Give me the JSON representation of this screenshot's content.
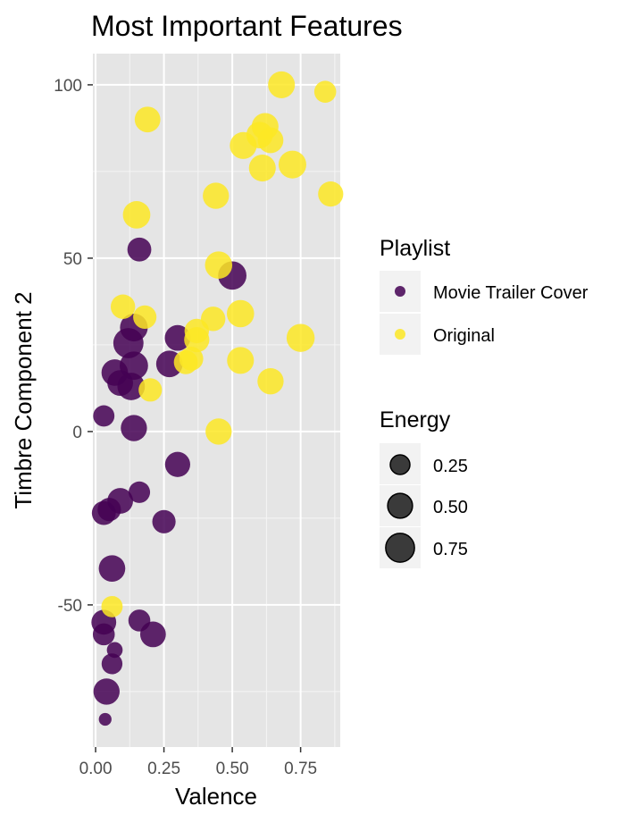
{
  "chart_data": {
    "type": "scatter",
    "title": "Most Important Features",
    "xlabel": "Valence",
    "ylabel": "Timbre Component 2",
    "xlim": [
      -0.01,
      0.895
    ],
    "ylim": [
      -91,
      109
    ],
    "xticks": [
      0,
      0.25,
      0.5,
      0.75
    ],
    "xtick_labels": [
      "0.00",
      "0.25",
      "0.50",
      "0.75"
    ],
    "yticks": [
      -50,
      0,
      50,
      100
    ],
    "ytick_labels": [
      "-50",
      "0",
      "50",
      "100"
    ],
    "grid": true,
    "panel_background": "#e5e5e5",
    "color_legend": {
      "title": "Playlist",
      "position": "right",
      "entries": [
        {
          "label": "Movie Trailer Cover",
          "color": "#440154"
        },
        {
          "label": "Original",
          "color": "#fde725"
        }
      ]
    },
    "size_legend": {
      "title": "Energy",
      "position": "right",
      "entries": [
        {
          "label": "0.25",
          "value": 0.25
        },
        {
          "label": "0.50",
          "value": 0.5
        },
        {
          "label": "0.75",
          "value": 0.75
        }
      ]
    },
    "series": [
      {
        "name": "Movie Trailer Cover",
        "color": "#440154",
        "points": [
          {
            "x": 0.16,
            "y": 52.5,
            "energy": 0.45
          },
          {
            "x": 0.5,
            "y": 45,
            "energy": 0.72
          },
          {
            "x": 0.14,
            "y": 30,
            "energy": 0.68
          },
          {
            "x": 0.12,
            "y": 25.5,
            "energy": 0.85
          },
          {
            "x": 0.3,
            "y": 27,
            "energy": 0.55
          },
          {
            "x": 0.07,
            "y": 17,
            "energy": 0.6
          },
          {
            "x": 0.14,
            "y": 19,
            "energy": 0.72
          },
          {
            "x": 0.27,
            "y": 19.5,
            "energy": 0.6
          },
          {
            "x": 0.09,
            "y": 14,
            "energy": 0.55
          },
          {
            "x": 0.13,
            "y": 13,
            "energy": 0.66
          },
          {
            "x": 0.03,
            "y": 4.5,
            "energy": 0.32
          },
          {
            "x": 0.14,
            "y": 1,
            "energy": 0.58
          },
          {
            "x": 0.3,
            "y": -9.5,
            "energy": 0.52
          },
          {
            "x": 0.16,
            "y": -17.5,
            "energy": 0.33
          },
          {
            "x": 0.09,
            "y": -20,
            "energy": 0.55
          },
          {
            "x": 0.05,
            "y": -22.5,
            "energy": 0.42
          },
          {
            "x": 0.03,
            "y": -23.5,
            "energy": 0.45
          },
          {
            "x": 0.25,
            "y": -26,
            "energy": 0.42
          },
          {
            "x": 0.06,
            "y": -39.5,
            "energy": 0.6
          },
          {
            "x": 0.03,
            "y": -55,
            "energy": 0.5
          },
          {
            "x": 0.16,
            "y": -54.5,
            "energy": 0.35
          },
          {
            "x": 0.03,
            "y": -58.5,
            "energy": 0.35
          },
          {
            "x": 0.21,
            "y": -58.5,
            "energy": 0.55
          },
          {
            "x": 0.07,
            "y": -63,
            "energy": 0.12
          },
          {
            "x": 0.06,
            "y": -67,
            "energy": 0.3
          },
          {
            "x": 0.04,
            "y": -75,
            "energy": 0.58
          },
          {
            "x": 0.035,
            "y": -83,
            "energy": 0.05
          }
        ]
      },
      {
        "name": "Original",
        "color": "#fde725",
        "points": [
          {
            "x": 0.68,
            "y": 100,
            "energy": 0.62
          },
          {
            "x": 0.84,
            "y": 98,
            "energy": 0.35
          },
          {
            "x": 0.19,
            "y": 90,
            "energy": 0.55
          },
          {
            "x": 0.62,
            "y": 88,
            "energy": 0.62
          },
          {
            "x": 0.6,
            "y": 85.5,
            "energy": 0.6
          },
          {
            "x": 0.64,
            "y": 84,
            "energy": 0.55
          },
          {
            "x": 0.54,
            "y": 82.5,
            "energy": 0.62
          },
          {
            "x": 0.72,
            "y": 77,
            "energy": 0.68
          },
          {
            "x": 0.61,
            "y": 76,
            "energy": 0.62
          },
          {
            "x": 0.44,
            "y": 68,
            "energy": 0.58
          },
          {
            "x": 0.86,
            "y": 68.5,
            "energy": 0.52
          },
          {
            "x": 0.15,
            "y": 62.5,
            "energy": 0.66
          },
          {
            "x": 0.45,
            "y": 48,
            "energy": 0.65
          },
          {
            "x": 0.1,
            "y": 36,
            "energy": 0.48
          },
          {
            "x": 0.18,
            "y": 33,
            "energy": 0.42
          },
          {
            "x": 0.43,
            "y": 32.5,
            "energy": 0.48
          },
          {
            "x": 0.53,
            "y": 34,
            "energy": 0.65
          },
          {
            "x": 0.37,
            "y": 29,
            "energy": 0.48
          },
          {
            "x": 0.37,
            "y": 26.5,
            "energy": 0.52
          },
          {
            "x": 0.75,
            "y": 27,
            "energy": 0.7
          },
          {
            "x": 0.35,
            "y": 21,
            "energy": 0.45
          },
          {
            "x": 0.33,
            "y": 20,
            "energy": 0.45
          },
          {
            "x": 0.53,
            "y": 20.5,
            "energy": 0.62
          },
          {
            "x": 0.2,
            "y": 12,
            "energy": 0.42
          },
          {
            "x": 0.64,
            "y": 14.5,
            "energy": 0.58
          },
          {
            "x": 0.45,
            "y": 0,
            "energy": 0.58
          },
          {
            "x": 0.06,
            "y": -50.5,
            "energy": 0.32
          }
        ]
      }
    ]
  }
}
